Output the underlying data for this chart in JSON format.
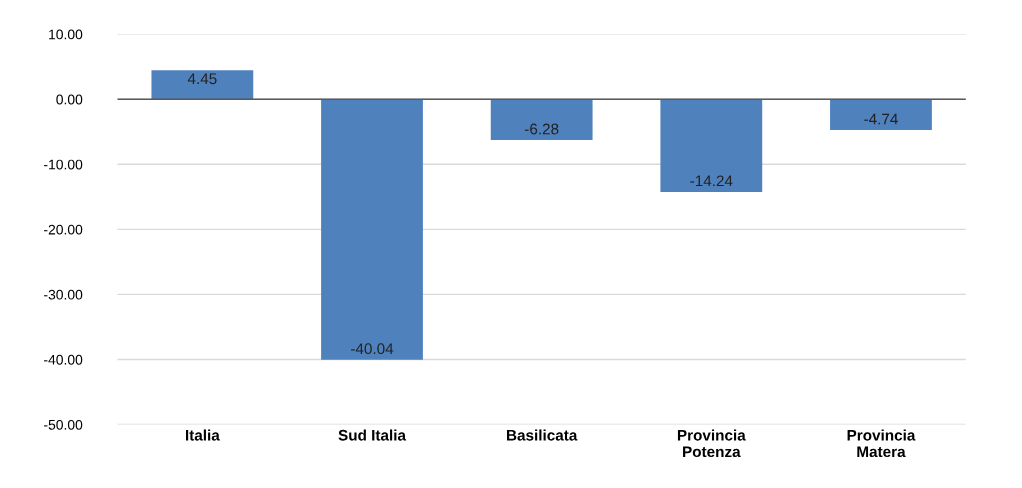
{
  "chart_data": {
    "type": "bar",
    "categories": [
      "Italia",
      "Sud Italia",
      "Basilicata",
      "Provincia\nPotenza",
      "Provincia\nMatera"
    ],
    "values": [
      4.45,
      -40.04,
      -6.28,
      -14.24,
      -4.74
    ],
    "color": "#4f81bd",
    "ylim": [
      -50,
      10
    ],
    "yticks": [
      {
        "value": -50,
        "label": "-50.00"
      },
      {
        "value": -40,
        "label": "-40.00"
      },
      {
        "value": -30,
        "label": "-30.00"
      },
      {
        "value": -20,
        "label": "-20.00"
      },
      {
        "value": -10,
        "label": "-10.00"
      },
      {
        "value": 0,
        "label": "0.00"
      },
      {
        "value": 10,
        "label": "10.00"
      }
    ],
    "data_labels": true,
    "grid": "y",
    "legend": false
  }
}
